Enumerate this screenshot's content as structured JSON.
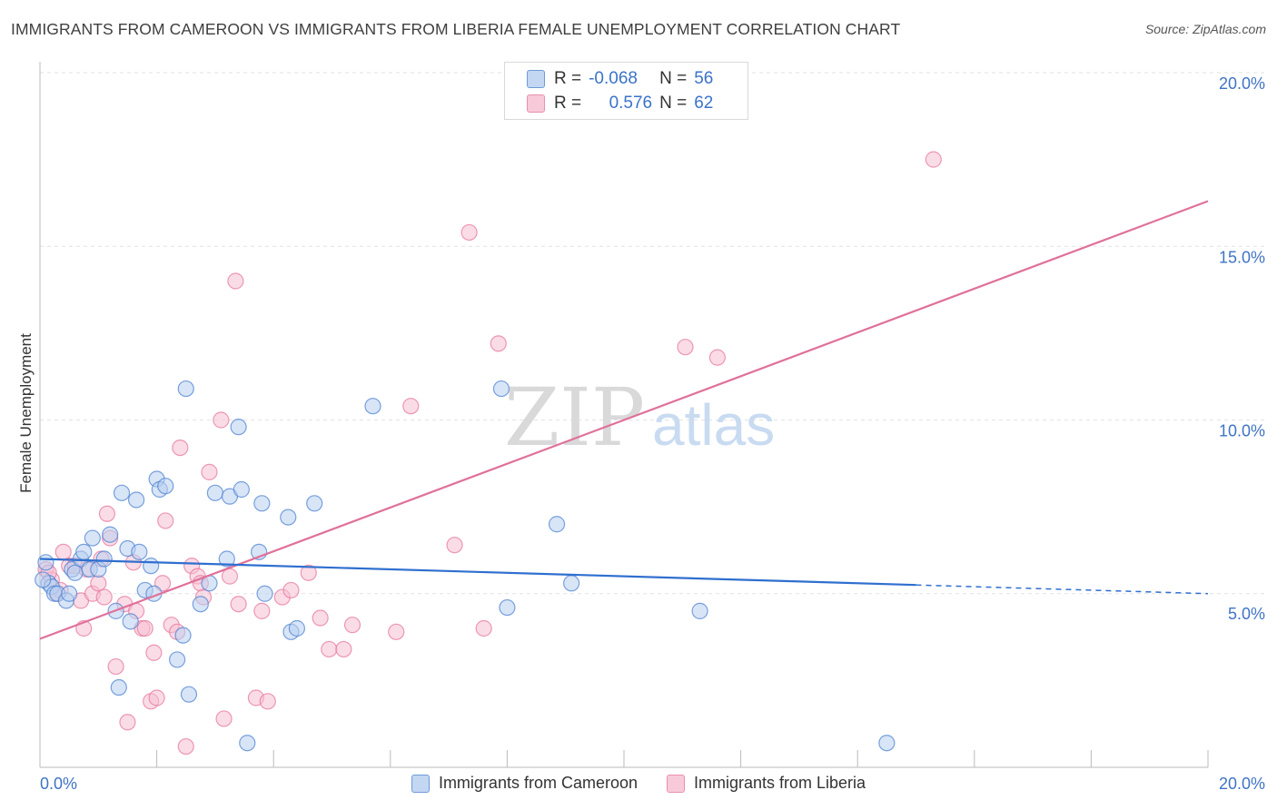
{
  "title": "IMMIGRANTS FROM CAMEROON VS IMMIGRANTS FROM LIBERIA FEMALE UNEMPLOYMENT CORRELATION CHART",
  "source": "Source: ZipAtlas.com",
  "watermark": {
    "zip": "ZIP",
    "atlas": "atlas"
  },
  "colors": {
    "blue": "#4f83d2",
    "blue_fill": "#b8d0f0",
    "blue_line": "#2f6fcf",
    "pink": "#e5709a",
    "pink_fill": "#f5c0d2",
    "pink_line": "#e0709a",
    "tick_label": "#3f73c6",
    "grid": "#e2e2e2"
  },
  "legend": {
    "r_label": "R =",
    "n_label": "N =",
    "rows": [
      {
        "name": "Immigrants from Cameroon",
        "r": "-0.068",
        "n": "56"
      },
      {
        "name": "Immigrants from Liberia",
        "r": "0.576",
        "n": "62"
      }
    ]
  },
  "chart_data": {
    "type": "scatter",
    "title": "IMMIGRANTS FROM CAMEROON VS IMMIGRANTS FROM LIBERIA FEMALE UNEMPLOYMENT CORRELATION CHART",
    "xlabel": "",
    "ylabel": "Female Unemployment",
    "xlim": [
      0,
      20
    ],
    "ylim": [
      0,
      20
    ],
    "x_tick_labels": [
      "0.0%",
      "20.0%"
    ],
    "y_ticks": [
      5,
      10,
      15,
      20
    ],
    "y_tick_labels": [
      "5.0%",
      "10.0%",
      "15.0%",
      "20.0%"
    ],
    "grid": true,
    "legend_position": "top-center",
    "series": [
      {
        "name": "Immigrants from Cameroon",
        "color": "#4f83d2",
        "r": -0.068,
        "n": 56,
        "trend": {
          "x": [
            0,
            15,
            20
          ],
          "y": [
            6.0,
            5.25,
            5.0
          ],
          "solid_until": 15
        },
        "points": [
          [
            0.1,
            5.9
          ],
          [
            0.15,
            5.3
          ],
          [
            0.2,
            5.2
          ],
          [
            0.25,
            5.0
          ],
          [
            0.3,
            5.0
          ],
          [
            0.45,
            4.8
          ],
          [
            0.5,
            5.0
          ],
          [
            0.55,
            5.7
          ],
          [
            0.6,
            5.6
          ],
          [
            0.7,
            6.0
          ],
          [
            0.75,
            6.2
          ],
          [
            0.85,
            5.7
          ],
          [
            0.9,
            6.6
          ],
          [
            1.0,
            5.7
          ],
          [
            1.1,
            6.0
          ],
          [
            1.2,
            6.7
          ],
          [
            1.3,
            4.5
          ],
          [
            1.35,
            2.3
          ],
          [
            1.4,
            7.9
          ],
          [
            1.5,
            6.3
          ],
          [
            1.55,
            4.2
          ],
          [
            1.65,
            7.7
          ],
          [
            1.7,
            6.2
          ],
          [
            1.8,
            5.1
          ],
          [
            1.9,
            5.8
          ],
          [
            1.95,
            5.0
          ],
          [
            2.0,
            8.3
          ],
          [
            2.05,
            8.0
          ],
          [
            2.15,
            8.1
          ],
          [
            2.35,
            3.1
          ],
          [
            2.45,
            3.8
          ],
          [
            2.5,
            10.9
          ],
          [
            2.55,
            2.1
          ],
          [
            2.75,
            4.7
          ],
          [
            2.9,
            5.3
          ],
          [
            3.0,
            7.9
          ],
          [
            3.2,
            6.0
          ],
          [
            3.25,
            7.8
          ],
          [
            3.4,
            9.8
          ],
          [
            3.45,
            8.0
          ],
          [
            3.55,
            0.7
          ],
          [
            3.75,
            6.2
          ],
          [
            3.8,
            7.6
          ],
          [
            3.85,
            5.0
          ],
          [
            4.25,
            7.2
          ],
          [
            4.3,
            3.9
          ],
          [
            4.4,
            4.0
          ],
          [
            4.7,
            7.6
          ],
          [
            5.7,
            10.4
          ],
          [
            7.9,
            10.9
          ],
          [
            8.0,
            4.6
          ],
          [
            8.85,
            7.0
          ],
          [
            9.1,
            5.3
          ],
          [
            11.3,
            4.5
          ],
          [
            14.5,
            0.7
          ],
          [
            0.05,
            5.4
          ]
        ]
      },
      {
        "name": "Immigrants from Liberia",
        "color": "#e5709a",
        "r": 0.576,
        "n": 62,
        "trend": {
          "x": [
            0,
            20
          ],
          "y": [
            3.7,
            16.3
          ]
        },
        "points": [
          [
            0.1,
            5.7
          ],
          [
            0.2,
            5.4
          ],
          [
            0.3,
            5.0
          ],
          [
            0.4,
            6.2
          ],
          [
            0.5,
            5.8
          ],
          [
            0.6,
            5.8
          ],
          [
            0.7,
            4.8
          ],
          [
            0.75,
            4.0
          ],
          [
            0.8,
            5.7
          ],
          [
            0.9,
            5.0
          ],
          [
            1.0,
            5.3
          ],
          [
            1.05,
            6.0
          ],
          [
            1.1,
            4.9
          ],
          [
            1.15,
            7.3
          ],
          [
            1.2,
            6.6
          ],
          [
            1.3,
            2.9
          ],
          [
            1.45,
            4.7
          ],
          [
            1.5,
            1.3
          ],
          [
            1.6,
            5.9
          ],
          [
            1.65,
            4.5
          ],
          [
            1.75,
            4.0
          ],
          [
            1.8,
            4.0
          ],
          [
            1.9,
            1.9
          ],
          [
            1.95,
            3.3
          ],
          [
            2.0,
            2.0
          ],
          [
            2.1,
            5.3
          ],
          [
            2.15,
            7.1
          ],
          [
            2.25,
            4.1
          ],
          [
            2.35,
            3.9
          ],
          [
            2.4,
            9.2
          ],
          [
            2.5,
            0.6
          ],
          [
            2.6,
            5.8
          ],
          [
            2.7,
            5.5
          ],
          [
            2.75,
            5.3
          ],
          [
            2.8,
            4.9
          ],
          [
            2.9,
            8.5
          ],
          [
            3.1,
            10.0
          ],
          [
            3.15,
            1.4
          ],
          [
            3.25,
            5.5
          ],
          [
            3.35,
            14.0
          ],
          [
            3.4,
            4.7
          ],
          [
            3.7,
            2.0
          ],
          [
            3.8,
            4.5
          ],
          [
            3.9,
            1.9
          ],
          [
            4.15,
            4.9
          ],
          [
            4.3,
            5.1
          ],
          [
            4.6,
            5.6
          ],
          [
            4.8,
            4.3
          ],
          [
            4.95,
            3.4
          ],
          [
            5.2,
            3.4
          ],
          [
            5.35,
            4.1
          ],
          [
            6.1,
            3.9
          ],
          [
            6.35,
            10.4
          ],
          [
            7.1,
            6.4
          ],
          [
            7.35,
            15.4
          ],
          [
            7.6,
            4.0
          ],
          [
            7.85,
            12.2
          ],
          [
            11.05,
            12.1
          ],
          [
            11.6,
            11.8
          ],
          [
            15.3,
            17.5
          ],
          [
            0.15,
            5.6
          ],
          [
            0.35,
            5.1
          ]
        ]
      }
    ]
  }
}
